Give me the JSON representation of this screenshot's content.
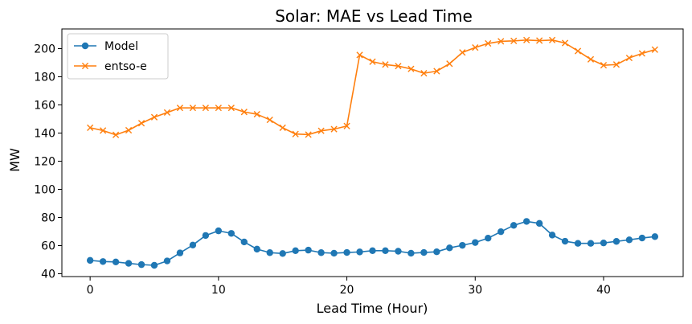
{
  "chart_data": {
    "type": "line",
    "title": "Solar: MAE vs Lead Time",
    "xlabel": "Lead Time (Hour)",
    "ylabel": "MW",
    "xlim": [
      -2.2,
      46.2
    ],
    "ylim": [
      38,
      214
    ],
    "xticks": [
      0,
      10,
      20,
      30,
      40
    ],
    "yticks": [
      40,
      60,
      80,
      100,
      120,
      140,
      160,
      180,
      200
    ],
    "legend_position": "top-left",
    "x": [
      0,
      1,
      2,
      3,
      4,
      5,
      6,
      7,
      8,
      9,
      10,
      11,
      12,
      13,
      14,
      15,
      16,
      17,
      18,
      19,
      20,
      21,
      22,
      23,
      24,
      25,
      26,
      27,
      28,
      29,
      30,
      31,
      32,
      33,
      34,
      35,
      36,
      37,
      38,
      39,
      40,
      41,
      42,
      43,
      44
    ],
    "series": [
      {
        "name": "Model",
        "color": "#1f77b4",
        "marker": "circle",
        "values": [
          49.5,
          48.7,
          48.4,
          47.4,
          46.5,
          46.0,
          49.1,
          54.8,
          60.4,
          67.2,
          70.5,
          68.7,
          62.6,
          57.5,
          55.0,
          54.4,
          56.4,
          56.8,
          55.0,
          54.6,
          55.1,
          55.5,
          56.4,
          56.4,
          56.0,
          54.6,
          55.1,
          55.6,
          58.4,
          60.2,
          62.2,
          65.3,
          69.9,
          74.4,
          77.2,
          75.8,
          67.5,
          63.1,
          61.6,
          61.6,
          61.9,
          63.0,
          64.1,
          65.4,
          66.4
        ]
      },
      {
        "name": "entso-e",
        "color": "#ff7f0e",
        "marker": "x",
        "values": [
          143.8,
          141.8,
          138.7,
          142.0,
          147.0,
          151.3,
          154.6,
          157.9,
          157.9,
          157.9,
          157.9,
          157.9,
          155.0,
          153.4,
          149.4,
          143.8,
          139.3,
          138.9,
          141.6,
          142.8,
          145.0,
          195.5,
          190.7,
          188.7,
          187.6,
          185.6,
          182.5,
          184.0,
          189.3,
          197.3,
          200.8,
          203.7,
          205.2,
          205.5,
          206.1,
          205.7,
          206.1,
          204.0,
          198.3,
          192.4,
          188.2,
          188.7,
          193.4,
          196.6,
          199.3
        ]
      }
    ]
  }
}
